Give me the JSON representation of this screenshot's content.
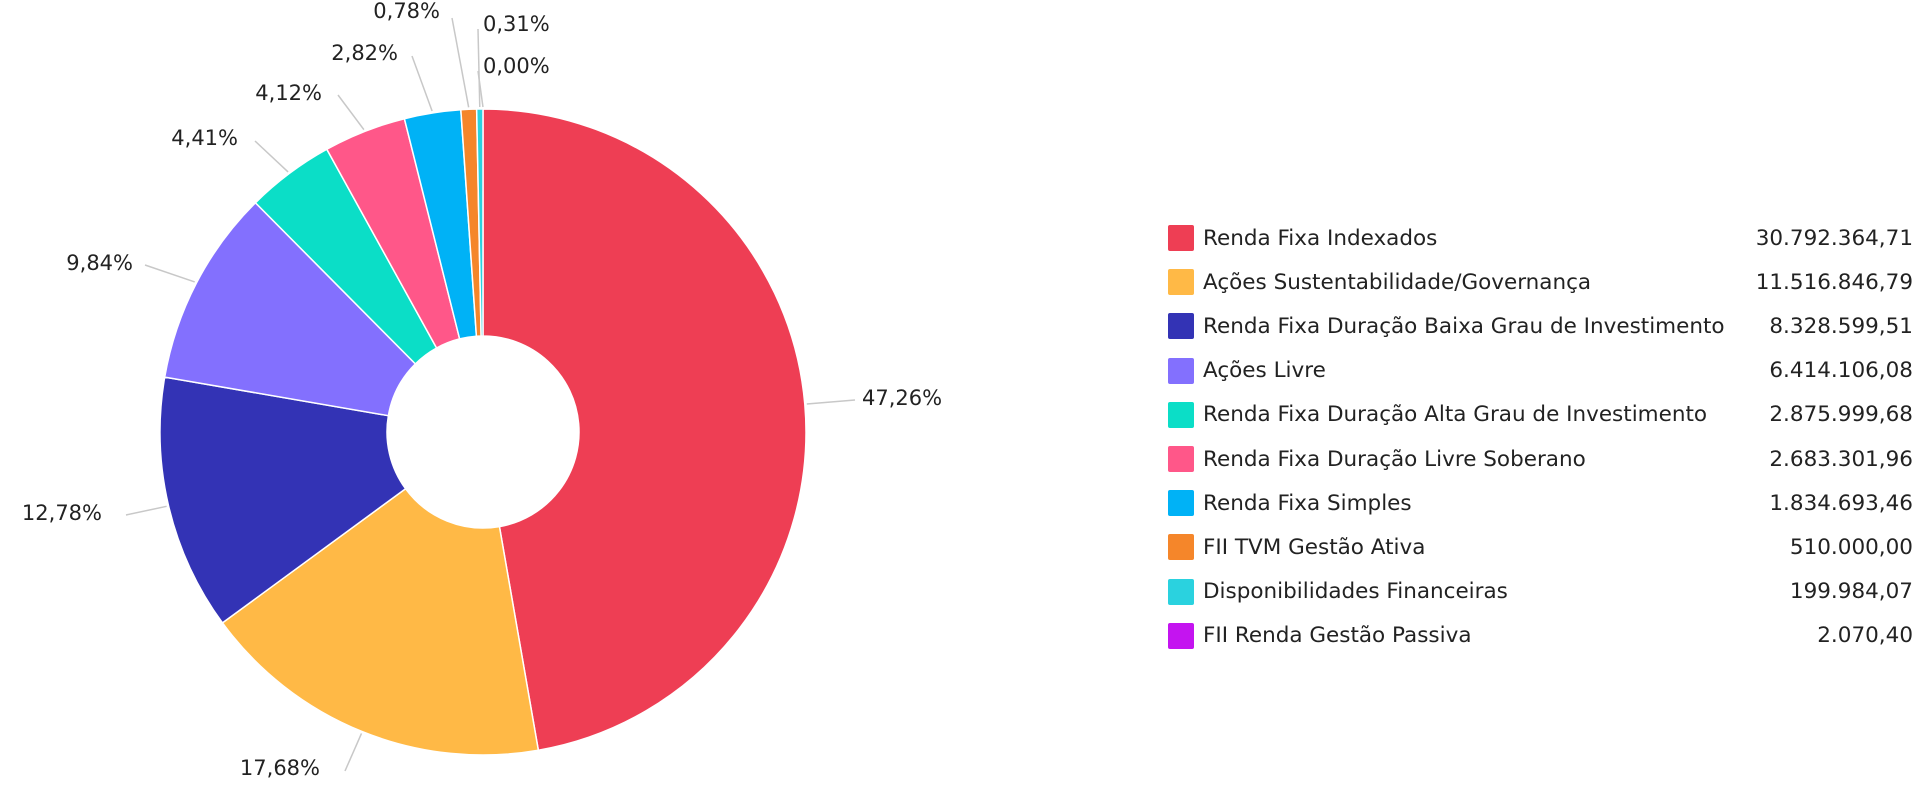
{
  "chart_data": {
    "type": "pie",
    "donut": true,
    "legend_position": "right",
    "slices": [
      {
        "name": "Renda Fixa Indexados",
        "value": "30.792.364,71",
        "percent_label": "47,26%",
        "percent": 47.26,
        "color": "#EE3E54"
      },
      {
        "name": "Ações Sustentabilidade/Governança",
        "value": "11.516.846,79",
        "percent_label": "17,68%",
        "percent": 17.68,
        "color": "#FFB946"
      },
      {
        "name": "Renda Fixa Duração Baixa Grau de Investimento",
        "value": "8.328.599,51",
        "percent_label": "12,78%",
        "percent": 12.78,
        "color": "#3333B5"
      },
      {
        "name": "Ações Livre",
        "value": "6.414.106,08",
        "percent_label": "9,84%",
        "percent": 9.84,
        "color": "#8370FE"
      },
      {
        "name": "Renda Fixa Duração Alta Grau de Investimento",
        "value": "2.875.999,68",
        "percent_label": "4,41%",
        "percent": 4.41,
        "color": "#0BDEC7"
      },
      {
        "name": "Renda Fixa Duração Livre Soberano",
        "value": "2.683.301,96",
        "percent_label": "4,12%",
        "percent": 4.12,
        "color": "#FF5789"
      },
      {
        "name": "Renda Fixa Simples",
        "value": "1.834.693,46",
        "percent_label": "2,82%",
        "percent": 2.82,
        "color": "#00B2F6"
      },
      {
        "name": "FII TVM Gestão Ativa",
        "value": "510.000,00",
        "percent_label": "0,78%",
        "percent": 0.78,
        "color": "#F5862A"
      },
      {
        "name": "Disponibilidades Financeiras",
        "value": "199.984,07",
        "percent_label": "0,31%",
        "percent": 0.31,
        "color": "#2AD2DF"
      },
      {
        "name": "FII Renda Gestão Passiva",
        "value": "2.070,40",
        "percent_label": "0,00%",
        "percent": 0.003,
        "color": "#C414F0"
      }
    ]
  }
}
